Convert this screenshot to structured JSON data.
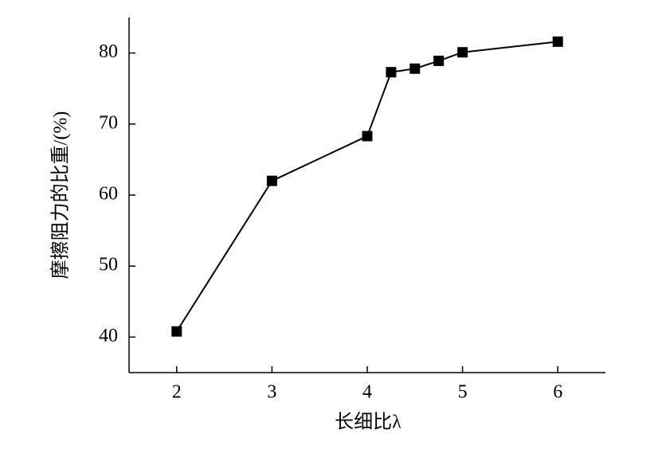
{
  "chart_data": {
    "type": "line",
    "x_label": "长细比λ",
    "y_label": "摩擦阻力的比重/(%)",
    "x": [
      2,
      3,
      4,
      4.25,
      4.5,
      4.75,
      5,
      6
    ],
    "series": [
      {
        "color": "#000000",
        "values": [
          40.8,
          62,
          68.3,
          77.3,
          77.8,
          78.9,
          80.1,
          81.6
        ]
      }
    ],
    "xlim": [
      1.5,
      6.5
    ],
    "xticks": [
      2,
      3,
      4,
      5,
      6
    ],
    "ylim": [
      35,
      85
    ],
    "yticks": [
      40,
      50,
      60,
      70,
      80
    ],
    "grid": false
  }
}
